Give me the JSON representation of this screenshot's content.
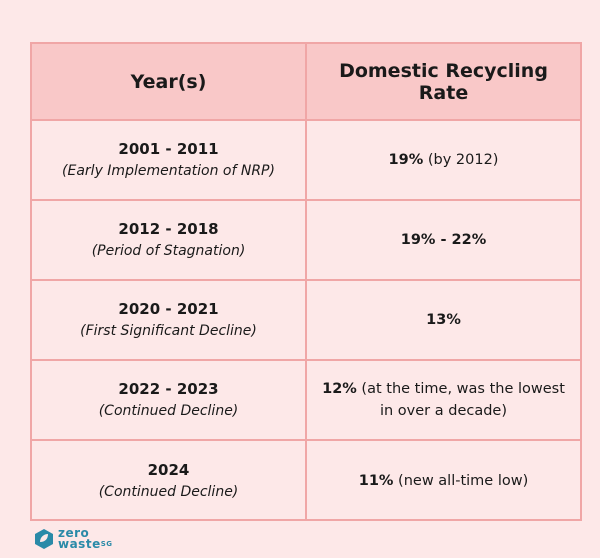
{
  "table": {
    "headers": [
      "Year(s)",
      "Domestic Recycling Rate"
    ],
    "rows": [
      {
        "years": "2001 - 2011",
        "note": "(Early Implementation of NRP)",
        "rate_bold": "19%",
        "rate_rest": " (by 2012)"
      },
      {
        "years": "2012 - 2018",
        "note": "(Period of Stagnation)",
        "rate_bold": "19% - 22%",
        "rate_rest": ""
      },
      {
        "years": "2020 - 2021",
        "note": "(First Significant Decline)",
        "rate_bold": "13%",
        "rate_rest": ""
      },
      {
        "years": "2022 - 2023",
        "note": "(Continued Decline)",
        "rate_bold": "12%",
        "rate_rest": " (at the time, was the lowest in over a decade)"
      },
      {
        "years": "2024",
        "note": "(Continued Decline)",
        "rate_bold": "11%",
        "rate_rest": " (new all-time low)"
      }
    ]
  },
  "logo": {
    "line1": "zero",
    "line2": "waste",
    "suffix": "SG"
  },
  "colors": {
    "background": "#fde8e8",
    "header": "#f9c8c8",
    "border": "#f0a6a6",
    "logo": "#2a8aa8"
  }
}
